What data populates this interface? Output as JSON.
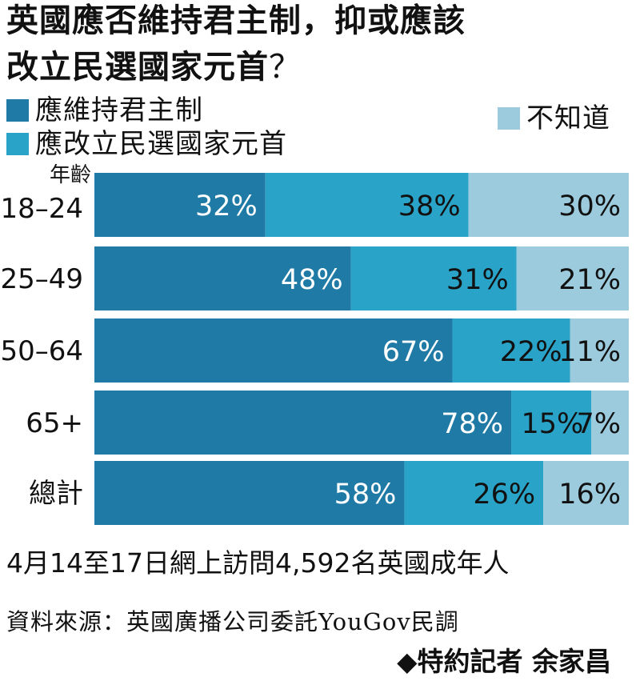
{
  "title_line1": "英國應否維持君主制，抑或應該",
  "title_line2": "改立民選國家元首",
  "title_qmark": "？",
  "age_header": "年齡",
  "note": "4月14至17日網上訪問4,592名英國成年人",
  "source": "資料來源：英國廣播公司委託YouGov民調",
  "credit": "◆特約記者 余家昌",
  "colors": {
    "keep": "#1f7aa6",
    "elect": "#2aa3c8",
    "unknown": "#9ccbde",
    "text_on_dark": "#ffffff",
    "text_on_light": "#111111"
  },
  "chart_data": {
    "type": "bar",
    "orientation": "horizontal",
    "stacked": true,
    "normalized": true,
    "unit": "%",
    "categories": [
      "18–24",
      "25–49",
      "50–64",
      "65+",
      "總計"
    ],
    "series": [
      {
        "name": "應維持君主制",
        "values": [
          32,
          48,
          67,
          78,
          58
        ],
        "labels": [
          "32%",
          "48%",
          "67%",
          "78%",
          "58%"
        ]
      },
      {
        "name": "應改立民選國家元首",
        "values": [
          38,
          31,
          22,
          15,
          26
        ],
        "labels": [
          "38%",
          "31%",
          "22%",
          "15%",
          "26%"
        ]
      },
      {
        "name": "不知道",
        "values": [
          30,
          21,
          11,
          7,
          16
        ],
        "labels": [
          "30%",
          "21%",
          "11%",
          "7%",
          "16%"
        ]
      }
    ],
    "xlim": [
      0,
      100
    ],
    "legend": "top"
  }
}
